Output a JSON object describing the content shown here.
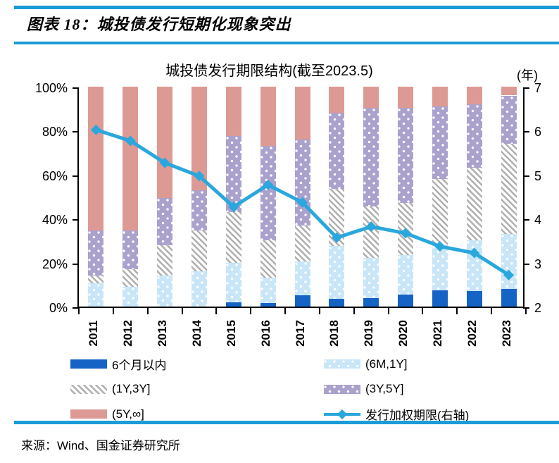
{
  "header": {
    "title": "图表 18：城投债发行短期化现象突出"
  },
  "source": "来源：Wind、国金证券研究所",
  "colors": {
    "rule_cyan": "#1b9bd7",
    "axis_black": "#000000",
    "line_series": "#2aa7dd"
  },
  "chart_data": {
    "type": "bar",
    "subtype": "stacked-percent-bar-with-line",
    "title": "城投债发行期限结构(截至2023.5)",
    "right_axis_unit": "(年)",
    "categories": [
      "2011",
      "2012",
      "2013",
      "2014",
      "2015",
      "2016",
      "2017",
      "2018",
      "2019",
      "2020",
      "2021",
      "2022",
      "2023"
    ],
    "left_axis": {
      "ticks": [
        "100%",
        "80%",
        "60%",
        "40%",
        "20%",
        "0%"
      ],
      "min": 0,
      "max": 100
    },
    "right_axis": {
      "ticks": [
        "7",
        "6",
        "5",
        "4",
        "3",
        "2"
      ],
      "min": 2,
      "max": 7
    },
    "grid": "off",
    "legend_position": "bottom-two-columns",
    "series": [
      {
        "name": "6个月以内",
        "type": "bar",
        "pattern": "solid",
        "color": "#1663c6",
        "values": [
          0,
          0,
          0,
          0,
          2,
          1.5,
          5,
          3.5,
          4,
          5.5,
          7.5,
          7,
          8
        ]
      },
      {
        "name": "(6M,1Y]",
        "type": "bar",
        "pattern": "dots",
        "color": "#c8e6f8",
        "values": [
          10.5,
          9,
          14,
          16,
          18,
          11.5,
          15.5,
          24,
          18,
          18,
          20.5,
          23,
          25
        ]
      },
      {
        "name": "(1Y,3Y]",
        "type": "bar",
        "pattern": "hatch",
        "color": "#ffffff",
        "stripe_color": "#b0aeae",
        "values": [
          3.5,
          8,
          14,
          18.5,
          23,
          17,
          16.5,
          26,
          23.5,
          23.5,
          30,
          33,
          41
        ]
      },
      {
        "name": "(3Y,5Y]",
        "type": "bar",
        "pattern": "dots",
        "color": "#aba1cd",
        "values": [
          20.5,
          17.5,
          21.5,
          18.5,
          34.5,
          43,
          39,
          34.5,
          45,
          43.5,
          33,
          29,
          22
        ]
      },
      {
        "name": "(5Y,∞]",
        "type": "bar",
        "pattern": "solid",
        "color": "#dd9a94",
        "values": [
          65.5,
          65.5,
          50.5,
          47,
          22.5,
          27,
          24,
          12,
          9.5,
          9.5,
          9,
          8,
          4
        ]
      },
      {
        "name": "发行加权期限(右轴)",
        "type": "line",
        "axis": "right",
        "color": "#2aa7dd",
        "values": [
          6.05,
          5.8,
          5.3,
          5.0,
          4.3,
          4.8,
          4.4,
          3.6,
          3.85,
          3.7,
          3.4,
          3.25,
          2.75
        ]
      }
    ]
  }
}
